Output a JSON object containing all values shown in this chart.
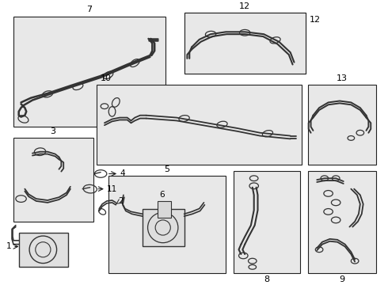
{
  "bg": "#f0f0f0",
  "box_bg": "#e8e8e8",
  "lc": "#222222",
  "tc": "#000000",
  "white": "#ffffff"
}
